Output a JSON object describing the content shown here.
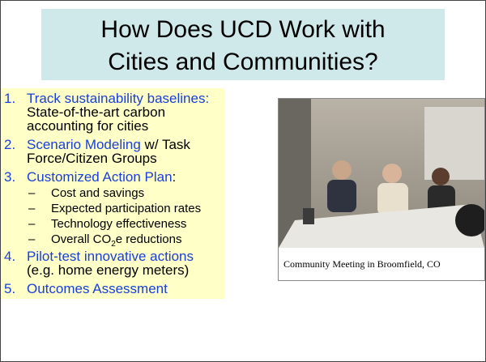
{
  "title": {
    "lines": [
      "How Does UCD Work with",
      "Cities and Communities?"
    ]
  },
  "list": {
    "sub_marker": "–",
    "items": [
      {
        "number": "1.",
        "highlight": "Track sustainability baselines:",
        "text": "State-of-the-art carbon accounting for cities"
      },
      {
        "number": "2.",
        "highlight": "Scenario Modeling",
        "text": "w/ Task Force/Citizen Groups"
      },
      {
        "number": "3.",
        "highlight": "Customized Action Plan",
        "text": ":",
        "subitems": [
          "Cost and savings",
          "Expected participation rates",
          "Technology effectiveness"
        ],
        "last_subitem": {
          "text": "Overall CO",
          "subscript": "2",
          "suffix": "e reductions"
        }
      },
      {
        "number": "4.",
        "highlight": "Pilot-test innovative actions",
        "text": "(e.g. home energy meters)"
      },
      {
        "number": "5.",
        "highlight": "Outcomes Assessment"
      }
    ]
  },
  "photo": {
    "caption": "Community Meeting in Broomfield, CO"
  }
}
